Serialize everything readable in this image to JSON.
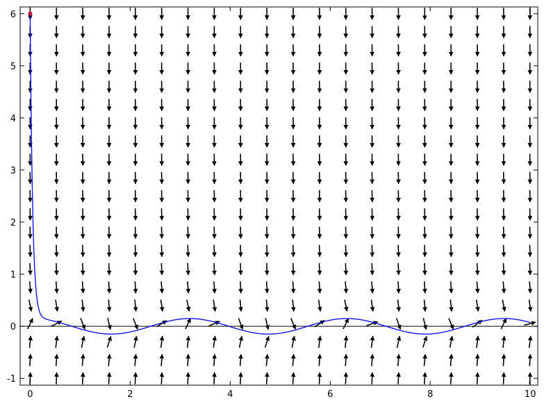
{
  "chart_data": {
    "type": "line",
    "title": "",
    "xlabel": "",
    "ylabel": "",
    "xlim": [
      -0.2,
      10.15
    ],
    "ylim": [
      -1.13,
      6.13
    ],
    "grid": false,
    "x_ticks": [
      0,
      2,
      4,
      6,
      8,
      10
    ],
    "y_ticks": [
      -1,
      0,
      1,
      2,
      3,
      4,
      5,
      6
    ],
    "x_tick_labels": [
      "0",
      "2",
      "4",
      "6",
      "8",
      "10"
    ],
    "y_tick_labels": [
      "-1",
      "0",
      "1",
      "2",
      "3",
      "4",
      "5",
      "6"
    ],
    "slope_field": {
      "equation_form": "dy/dt = -20*y + 3*cos(2*t)",
      "x_start": 0,
      "x_step": 0.526,
      "x_count": 20,
      "y_start": -1,
      "y_step": 0.35,
      "y_count": 21,
      "arrow_color": "#000000"
    },
    "series": [
      {
        "kind": "solution_curve",
        "color": "#0000ff",
        "t0": 0,
        "t1": 10,
        "initial_condition": [
          0,
          6
        ]
      }
    ],
    "initial_point": {
      "x": 0,
      "y": 6,
      "color": "#c0143c"
    },
    "zero_line": {
      "y": 0,
      "color": "#000000"
    }
  }
}
